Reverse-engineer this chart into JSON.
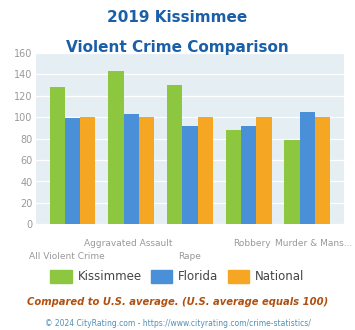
{
  "title_line1": "2019 Kissimmee",
  "title_line2": "Violent Crime Comparison",
  "categories": [
    "All Violent Crime",
    "Aggravated Assault",
    "Rape",
    "Robbery",
    "Murder & Mans..."
  ],
  "kissimmee": [
    128,
    143,
    130,
    88,
    79
  ],
  "florida": [
    99,
    103,
    92,
    92,
    105
  ],
  "national": [
    100,
    100,
    100,
    100,
    100
  ],
  "kissimmee_color": "#8dc63f",
  "florida_color": "#4a90d9",
  "national_color": "#f5a623",
  "plot_bg": "#e4eef3",
  "ylim": [
    0,
    160
  ],
  "yticks": [
    0,
    20,
    40,
    60,
    80,
    100,
    120,
    140,
    160
  ],
  "footnote1": "Compared to U.S. average. (U.S. average equals 100)",
  "footnote2": "© 2024 CityRating.com - https://www.cityrating.com/crime-statistics/",
  "title_color": "#1a5fa8",
  "footnote1_color": "#b05010",
  "footnote2_color": "#5090b8",
  "xlabel_color": "#999999",
  "tick_color": "#999999"
}
